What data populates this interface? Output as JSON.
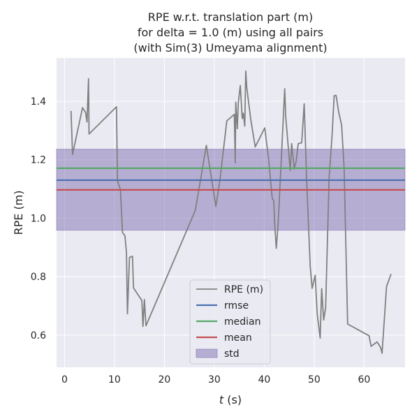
{
  "chart_data": {
    "type": "line",
    "title": [
      "RPE w.r.t. translation part (m)",
      "for delta = 1.0 (m) using all pairs",
      "(with Sim(3) Umeyama alignment)"
    ],
    "xlabel": "t",
    "xlabel_unit": " (s)",
    "ylabel": "RPE (m)",
    "xlim": [
      -1.6,
      68.2
    ],
    "ylim": [
      0.49,
      1.548
    ],
    "xticks": [
      0,
      10,
      20,
      30,
      40,
      50,
      60
    ],
    "yticks": [
      0.6,
      0.8,
      1.0,
      1.2,
      1.4
    ],
    "xtick_labels": [
      "0",
      "10",
      "20",
      "30",
      "40",
      "50",
      "60"
    ],
    "ytick_labels": [
      "0.6",
      "0.8",
      "1.0",
      "1.2",
      "1.4"
    ],
    "grid": true,
    "legend_position": "lower-center",
    "series": [
      {
        "name": "RPE (m)",
        "color": "#808080",
        "x": [
          1.3,
          1.6,
          3.6,
          4.2,
          4.5,
          4.8,
          4.9,
          10.4,
          10.6,
          11.2,
          11.6,
          12.1,
          12.4,
          12.6,
          13.0,
          13.6,
          13.8,
          15.5,
          15.7,
          16.0,
          16.3,
          26.2,
          28.4,
          30.3,
          31.1,
          32.5,
          34.0,
          34.2,
          34.3,
          34.6,
          34.8,
          35.2,
          35.6,
          35.8,
          36.1,
          36.3,
          36.5,
          37.3,
          38.2,
          40.1,
          40.9,
          41.6,
          41.9,
          42.1,
          42.4,
          42.8,
          44.1,
          44.3,
          45.2,
          45.5,
          46.0,
          46.4,
          46.8,
          47.5,
          48.0,
          48.5,
          49.2,
          49.6,
          50.2,
          50.6,
          51.2,
          51.5,
          51.9,
          52.3,
          53.0,
          53.6,
          54.0,
          54.4,
          54.9,
          55.5,
          56.0,
          56.7,
          61.0,
          61.4,
          62.6,
          63.3,
          63.6,
          64.5,
          65.4
        ],
        "y": [
          1.367,
          1.218,
          1.378,
          1.362,
          1.329,
          1.477,
          1.288,
          1.381,
          1.128,
          1.097,
          0.951,
          0.94,
          0.883,
          0.673,
          0.866,
          0.87,
          0.762,
          0.718,
          0.63,
          0.722,
          0.632,
          1.027,
          1.249,
          1.04,
          1.128,
          1.333,
          1.355,
          1.189,
          1.397,
          1.306,
          1.394,
          1.454,
          1.341,
          1.359,
          1.315,
          1.503,
          1.446,
          1.337,
          1.244,
          1.309,
          1.199,
          1.068,
          1.06,
          0.979,
          0.897,
          0.985,
          1.443,
          1.348,
          1.163,
          1.255,
          1.168,
          1.196,
          1.255,
          1.258,
          1.391,
          1.125,
          0.836,
          0.76,
          0.805,
          0.674,
          0.59,
          0.759,
          0.652,
          0.694,
          1.138,
          1.286,
          1.419,
          1.42,
          1.364,
          1.318,
          1.17,
          0.638,
          0.598,
          0.562,
          0.577,
          0.558,
          0.538,
          0.766,
          0.809
        ]
      }
    ],
    "stats": [
      {
        "name": "rmse",
        "value": 1.13,
        "color": "#4c72b0"
      },
      {
        "name": "median",
        "value": 1.171,
        "color": "#55a868"
      },
      {
        "name": "mean",
        "value": 1.097,
        "color": "#c44e52"
      }
    ],
    "std_band": {
      "name": "std",
      "lower": 0.959,
      "upper": 1.236,
      "color": "#8172b2"
    },
    "colors": {
      "plot_background": "#eaeaf2",
      "grid": "#ffffff",
      "text": "#262626"
    }
  }
}
